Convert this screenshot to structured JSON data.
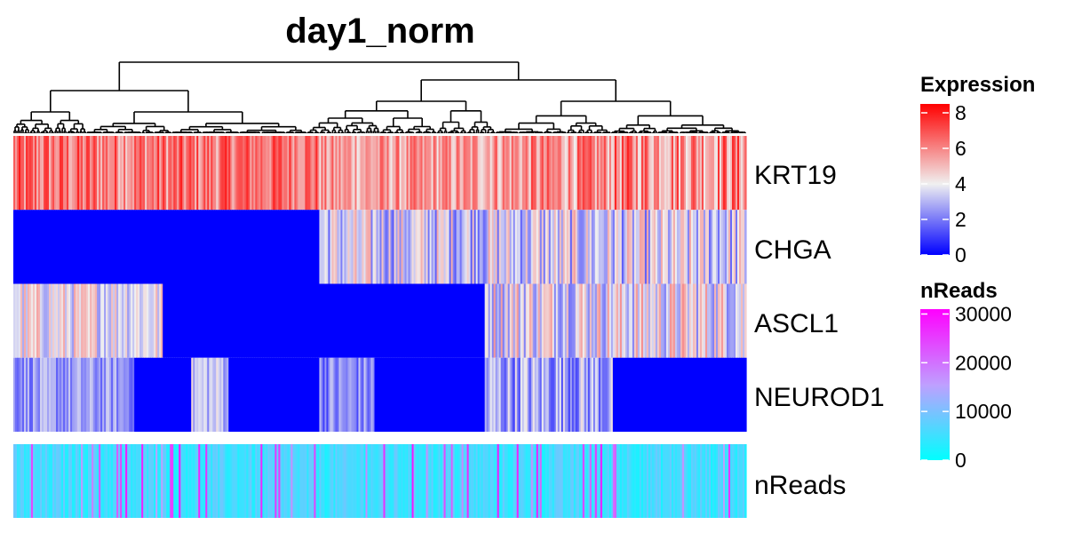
{
  "chart_data": {
    "type": "heatmap",
    "title": "day1_norm",
    "rows": [
      "KRT19",
      "CHGA",
      "ASCL1",
      "NEUROD1"
    ],
    "annotation_row": "nReads",
    "n_columns": 412,
    "clusters": [
      {
        "fraction": 0.166,
        "KRT19": [
          4.5,
          8.0
        ],
        "CHGA": [
          0,
          0
        ],
        "ASCL1": [
          2.5,
          5.5
        ],
        "NEUROD1": [
          1.5,
          3.5
        ]
      },
      {
        "fraction": 0.04,
        "KRT19": [
          4.5,
          8.0
        ],
        "CHGA": [
          0,
          0
        ],
        "ASCL1": [
          2.5,
          5.5
        ],
        "NEUROD1": [
          0,
          0
        ]
      },
      {
        "fraction": 0.04,
        "KRT19": [
          4.5,
          8.0
        ],
        "CHGA": [
          0,
          0
        ],
        "ASCL1": [
          0,
          0
        ],
        "NEUROD1": [
          0,
          0
        ]
      },
      {
        "fraction": 0.05,
        "KRT19": [
          4.5,
          8.0
        ],
        "CHGA": [
          0,
          0
        ],
        "ASCL1": [
          0,
          0
        ],
        "NEUROD1": [
          2.0,
          4.5
        ]
      },
      {
        "fraction": 0.12,
        "KRT19": [
          5.0,
          8.0
        ],
        "CHGA": [
          0,
          0
        ],
        "ASCL1": [
          0,
          0
        ],
        "NEUROD1": [
          0,
          0
        ]
      },
      {
        "fraction": 0.004,
        "KRT19": [
          5.0,
          8.0
        ],
        "CHGA": [
          0,
          0
        ],
        "ASCL1": [
          0,
          0
        ],
        "NEUROD1": [
          0,
          0
        ]
      },
      {
        "fraction": 0.075,
        "KRT19": [
          4.0,
          7.0
        ],
        "CHGA": [
          1.5,
          5.5
        ],
        "ASCL1": [
          0,
          0
        ],
        "NEUROD1": [
          1.0,
          3.5
        ]
      },
      {
        "fraction": 0.15,
        "KRT19": [
          4.0,
          7.0
        ],
        "CHGA": [
          1.5,
          5.5
        ],
        "ASCL1": [
          0,
          0
        ],
        "NEUROD1": [
          0,
          0
        ]
      },
      {
        "fraction": 0.175,
        "KRT19": [
          4.0,
          7.5
        ],
        "CHGA": [
          1.5,
          5.5
        ],
        "ASCL1": [
          2.0,
          6.0
        ],
        "NEUROD1": [
          1.0,
          4.5
        ]
      },
      {
        "fraction": 0.18,
        "KRT19": [
          4.0,
          8.0
        ],
        "CHGA": [
          1.5,
          5.5
        ],
        "ASCL1": [
          2.0,
          6.0
        ],
        "NEUROD1": [
          0,
          0
        ]
      }
    ],
    "nReads_typical": [
      2000,
      9000
    ],
    "nReads_occasional": [
      15000,
      30000
    ],
    "dendrogram": {
      "root_split_fraction": 0.4,
      "left_split_fraction": 0.25,
      "right_split_fraction": 0.43
    },
    "legends": [
      {
        "title": "Expression",
        "range": [
          0,
          8.5
        ],
        "ticks": [
          0,
          2,
          4,
          6,
          8
        ],
        "colors": [
          [
            "0",
            "#0000ff"
          ],
          [
            "4",
            "#f0f0f0"
          ],
          [
            "8.5",
            "#ff0000"
          ]
        ]
      },
      {
        "title": "nReads",
        "range": [
          0,
          31000
        ],
        "ticks": [
          0,
          10000,
          20000,
          30000
        ],
        "colors": [
          [
            "0",
            "#00ffff"
          ],
          [
            "15500",
            "#bf9fff"
          ],
          [
            "31000",
            "#ff00ff"
          ]
        ]
      }
    ],
    "legend_placement": "right"
  }
}
